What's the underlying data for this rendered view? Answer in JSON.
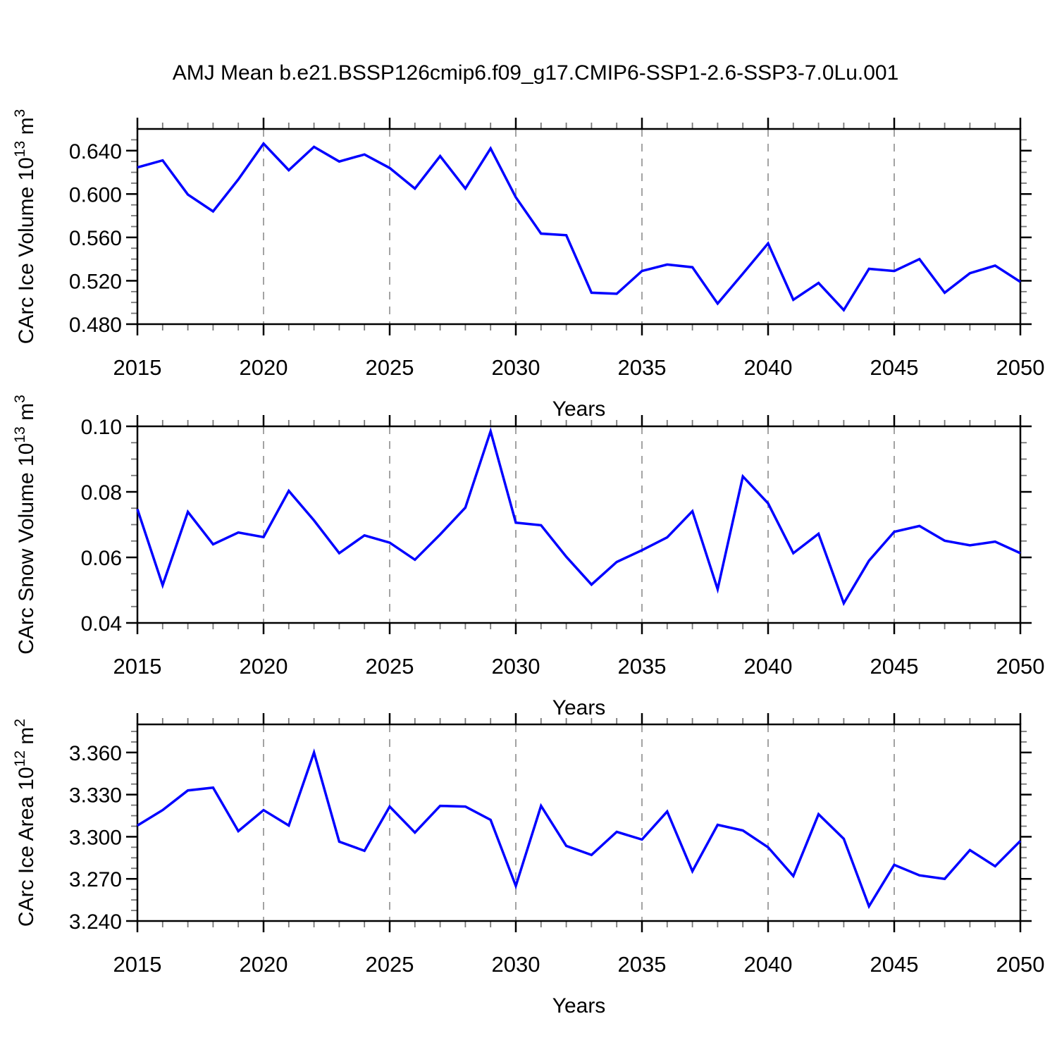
{
  "title": "AMJ Mean b.e21.BSSP126cmip6.f09_g17.CMIP6-SSP1-2.6-SSP3-7.0Lu.001",
  "colors": {
    "line": "#0000ff",
    "grid": "#a3a3a3",
    "frame": "#000000",
    "minor_tick": "#777777",
    "text": "#000000"
  },
  "chart_data": [
    {
      "type": "line",
      "name": "carc-ice-volume",
      "ylabel": "CArc Ice Volume 10^13 m^3",
      "ylabel_parts": [
        {
          "t": "CArc Ice Volume 10",
          "sup": false
        },
        {
          "t": "13",
          "sup": true
        },
        {
          "t": " m",
          "sup": false
        },
        {
          "t": "3",
          "sup": true
        }
      ],
      "xlabel": "Years",
      "x": [
        2015,
        2016,
        2017,
        2018,
        2019,
        2020,
        2021,
        2022,
        2023,
        2024,
        2025,
        2026,
        2027,
        2028,
        2029,
        2030,
        2031,
        2032,
        2033,
        2034,
        2035,
        2036,
        2037,
        2038,
        2039,
        2040,
        2041,
        2042,
        2043,
        2044,
        2045,
        2046,
        2047,
        2048,
        2049,
        2050
      ],
      "values": [
        0.6245,
        0.631,
        0.5995,
        0.584,
        0.6135,
        0.6465,
        0.622,
        0.6435,
        0.63,
        0.6365,
        0.624,
        0.605,
        0.635,
        0.605,
        0.642,
        0.597,
        0.5635,
        0.562,
        0.509,
        0.508,
        0.529,
        0.535,
        0.5325,
        0.499,
        0.5265,
        0.5545,
        0.5025,
        0.518,
        0.493,
        0.531,
        0.529,
        0.54,
        0.509,
        0.527,
        0.534,
        0.519
      ],
      "xlim": [
        2015,
        2050
      ],
      "ylim": [
        0.48,
        0.66
      ],
      "yticks": [
        0.48,
        0.52,
        0.56,
        0.6,
        0.64
      ],
      "ytick_labels": [
        "0.480",
        "0.520",
        "0.560",
        "0.600",
        "0.640"
      ],
      "y_minor_step": 0.01,
      "xticks": [
        2015,
        2020,
        2025,
        2030,
        2035,
        2040,
        2045,
        2050
      ],
      "xtick_labels": [
        "2015",
        "2020",
        "2025",
        "2030",
        "2035",
        "2040",
        "2045",
        "2050"
      ],
      "x_minor_step": 1,
      "grid_years": [
        2020,
        2025,
        2030,
        2035,
        2040,
        2045
      ],
      "grid_on": true,
      "legend": "none"
    },
    {
      "type": "line",
      "name": "carc-snow-volume",
      "ylabel": "CArc Snow Volume 10^13 m^3",
      "ylabel_parts": [
        {
          "t": "CArc Snow Volume 10",
          "sup": false
        },
        {
          "t": "13",
          "sup": true
        },
        {
          "t": " m",
          "sup": false
        },
        {
          "t": "3",
          "sup": true
        }
      ],
      "xlabel": "Years",
      "x": [
        2015,
        2016,
        2017,
        2018,
        2019,
        2020,
        2021,
        2022,
        2023,
        2024,
        2025,
        2026,
        2027,
        2028,
        2029,
        2030,
        2031,
        2032,
        2033,
        2034,
        2035,
        2036,
        2037,
        2038,
        2039,
        2040,
        2041,
        2042,
        2043,
        2044,
        2045,
        2046,
        2047,
        2048,
        2049,
        2050
      ],
      "values": [
        0.0747,
        0.0515,
        0.0739,
        0.064,
        0.0676,
        0.0662,
        0.0803,
        0.0713,
        0.0613,
        0.0667,
        0.0645,
        0.0593,
        0.067,
        0.0752,
        0.0985,
        0.0706,
        0.0698,
        0.0602,
        0.0517,
        0.0586,
        0.0622,
        0.0661,
        0.0741,
        0.0503,
        0.0847,
        0.0765,
        0.0613,
        0.0672,
        0.046,
        0.059,
        0.0678,
        0.0696,
        0.0651,
        0.0637,
        0.0648,
        0.0613
      ],
      "xlim": [
        2015,
        2050
      ],
      "ylim": [
        0.04,
        0.1
      ],
      "yticks": [
        0.04,
        0.06,
        0.08,
        0.1
      ],
      "ytick_labels": [
        "0.04",
        "0.06",
        "0.08",
        "0.10"
      ],
      "y_minor_step": 0.005,
      "xticks": [
        2015,
        2020,
        2025,
        2030,
        2035,
        2040,
        2045,
        2050
      ],
      "xtick_labels": [
        "2015",
        "2020",
        "2025",
        "2030",
        "2035",
        "2040",
        "2045",
        "2050"
      ],
      "x_minor_step": 1,
      "grid_years": [
        2020,
        2025,
        2030,
        2035,
        2040,
        2045
      ],
      "grid_on": true,
      "legend": "none"
    },
    {
      "type": "line",
      "name": "carc-ice-area",
      "ylabel": "CArc Ice Area 10^12 m^2",
      "ylabel_parts": [
        {
          "t": "CArc Ice Area 10",
          "sup": false
        },
        {
          "t": "12",
          "sup": true
        },
        {
          "t": " m",
          "sup": false
        },
        {
          "t": "2",
          "sup": true
        }
      ],
      "xlabel": "Years",
      "x": [
        2015,
        2016,
        2017,
        2018,
        2019,
        2020,
        2021,
        2022,
        2023,
        2024,
        2025,
        2026,
        2027,
        2028,
        2029,
        2030,
        2031,
        2032,
        2033,
        2034,
        2035,
        2036,
        2037,
        2038,
        2039,
        2040,
        2041,
        2042,
        2043,
        2044,
        2045,
        2046,
        2047,
        2048,
        2049,
        2050
      ],
      "values": [
        3.308,
        3.319,
        3.333,
        3.335,
        3.304,
        3.319,
        3.308,
        3.36,
        3.2965,
        3.29,
        3.3215,
        3.303,
        3.322,
        3.3215,
        3.312,
        3.265,
        3.322,
        3.2935,
        3.287,
        3.3035,
        3.298,
        3.318,
        3.2755,
        3.3085,
        3.3045,
        3.2925,
        3.272,
        3.316,
        3.2985,
        3.2505,
        3.28,
        3.2725,
        3.27,
        3.2905,
        3.279,
        3.297
      ],
      "xlim": [
        2015,
        2050
      ],
      "ylim": [
        3.24,
        3.38
      ],
      "yticks": [
        3.24,
        3.27,
        3.3,
        3.33,
        3.36
      ],
      "ytick_labels": [
        "3.240",
        "3.270",
        "3.300",
        "3.330",
        "3.360"
      ],
      "y_minor_step": 0.0075,
      "xticks": [
        2015,
        2020,
        2025,
        2030,
        2035,
        2040,
        2045,
        2050
      ],
      "xtick_labels": [
        "2015",
        "2020",
        "2025",
        "2030",
        "2035",
        "2040",
        "2045",
        "2050"
      ],
      "x_minor_step": 1,
      "grid_years": [
        2020,
        2025,
        2030,
        2035,
        2040,
        2045
      ],
      "grid_on": true,
      "legend": "none"
    }
  ]
}
